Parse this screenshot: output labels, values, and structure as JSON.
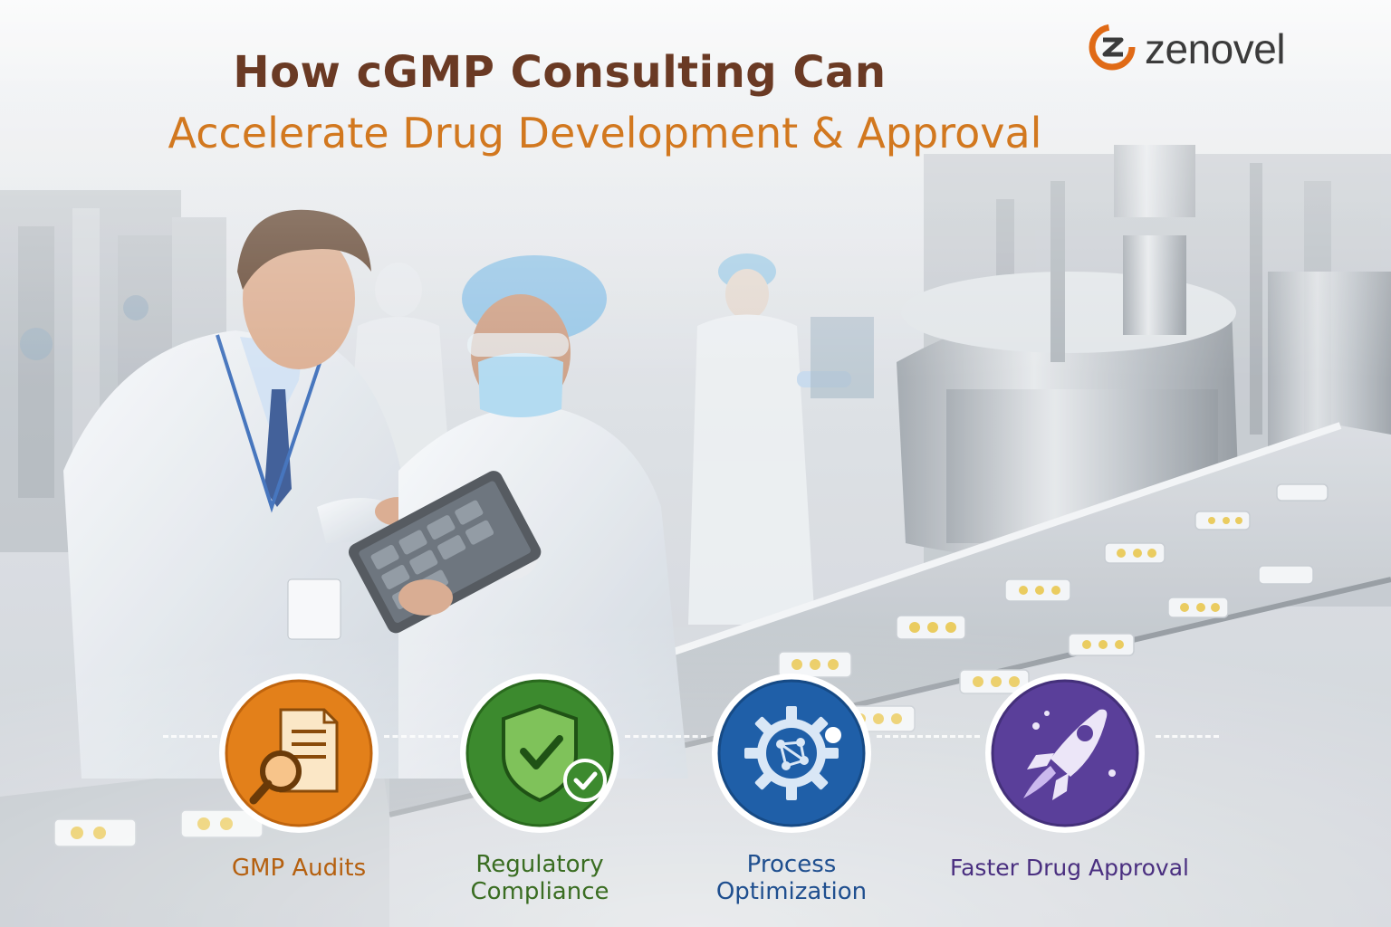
{
  "header": {
    "title_line1": "How cGMP Consulting Can",
    "title_line2": "Accelerate Drug Development & Approval",
    "title_line1_color": "#6a3a24",
    "title_line2_color": "#d2781f"
  },
  "brand": {
    "name": "zenovel",
    "icon": "zenovel-logo-icon",
    "accent": "#e06a16"
  },
  "features": [
    {
      "label": "GMP Audits",
      "icon": "document-magnifier-icon",
      "color": "#e3801a",
      "text_color": "#b5600f"
    },
    {
      "label": "Regulatory Compliance",
      "line1": "Regulatory",
      "line2": "Compliance",
      "icon": "shield-check-icon",
      "color": "#3c8a2e",
      "text_color": "#3a6d22"
    },
    {
      "label": "Process Optimization",
      "line1": "Process",
      "line2": "Optimization",
      "icon": "gear-network-icon",
      "color": "#1f5fa8",
      "text_color": "#1f4f8f"
    },
    {
      "label": "Faster Drug Approval",
      "icon": "rocket-icon",
      "color": "#5a3f9a",
      "text_color": "#4a2f80"
    }
  ]
}
